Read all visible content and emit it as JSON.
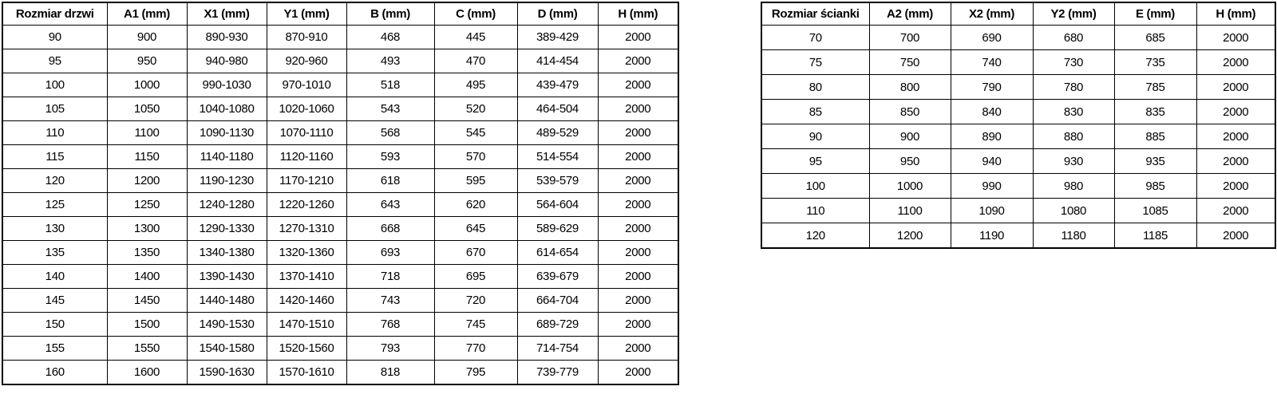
{
  "colors": {
    "background": "#ffffff",
    "border": "#000000",
    "text": "#000000"
  },
  "tables": [
    {
      "title": "Rozmiar drzwi",
      "headers": [
        "Rozmiar drzwi",
        "A1 (mm)",
        "X1 (mm)",
        "Y1 (mm)",
        "B (mm)",
        "C (mm)",
        "D (mm)",
        "H (mm)"
      ],
      "rows": [
        [
          "90",
          "900",
          "890-930",
          "870-910",
          "468",
          "445",
          "389-429",
          "2000"
        ],
        [
          "95",
          "950",
          "940-980",
          "920-960",
          "493",
          "470",
          "414-454",
          "2000"
        ],
        [
          "100",
          "1000",
          "990-1030",
          "970-1010",
          "518",
          "495",
          "439-479",
          "2000"
        ],
        [
          "105",
          "1050",
          "1040-1080",
          "1020-1060",
          "543",
          "520",
          "464-504",
          "2000"
        ],
        [
          "110",
          "1100",
          "1090-1130",
          "1070-1110",
          "568",
          "545",
          "489-529",
          "2000"
        ],
        [
          "115",
          "1150",
          "1140-1180",
          "1120-1160",
          "593",
          "570",
          "514-554",
          "2000"
        ],
        [
          "120",
          "1200",
          "1190-1230",
          "1170-1210",
          "618",
          "595",
          "539-579",
          "2000"
        ],
        [
          "125",
          "1250",
          "1240-1280",
          "1220-1260",
          "643",
          "620",
          "564-604",
          "2000"
        ],
        [
          "130",
          "1300",
          "1290-1330",
          "1270-1310",
          "668",
          "645",
          "589-629",
          "2000"
        ],
        [
          "135",
          "1350",
          "1340-1380",
          "1320-1360",
          "693",
          "670",
          "614-654",
          "2000"
        ],
        [
          "140",
          "1400",
          "1390-1430",
          "1370-1410",
          "718",
          "695",
          "639-679",
          "2000"
        ],
        [
          "145",
          "1450",
          "1440-1480",
          "1420-1460",
          "743",
          "720",
          "664-704",
          "2000"
        ],
        [
          "150",
          "1500",
          "1490-1530",
          "1470-1510",
          "768",
          "745",
          "689-729",
          "2000"
        ],
        [
          "155",
          "1550",
          "1540-1580",
          "1520-1560",
          "793",
          "770",
          "714-754",
          "2000"
        ],
        [
          "160",
          "1600",
          "1590-1630",
          "1570-1610",
          "818",
          "795",
          "739-779",
          "2000"
        ]
      ]
    },
    {
      "title": "Rozmiar ścianki",
      "headers": [
        "Rozmiar ścianki",
        "A2 (mm)",
        "X2 (mm)",
        "Y2 (mm)",
        "E (mm)",
        "H (mm)"
      ],
      "rows": [
        [
          "70",
          "700",
          "690",
          "680",
          "685",
          "2000"
        ],
        [
          "75",
          "750",
          "740",
          "730",
          "735",
          "2000"
        ],
        [
          "80",
          "800",
          "790",
          "780",
          "785",
          "2000"
        ],
        [
          "85",
          "850",
          "840",
          "830",
          "835",
          "2000"
        ],
        [
          "90",
          "900",
          "890",
          "880",
          "885",
          "2000"
        ],
        [
          "95",
          "950",
          "940",
          "930",
          "935",
          "2000"
        ],
        [
          "100",
          "1000",
          "990",
          "980",
          "985",
          "2000"
        ],
        [
          "110",
          "1100",
          "1090",
          "1080",
          "1085",
          "2000"
        ],
        [
          "120",
          "1200",
          "1190",
          "1180",
          "1185",
          "2000"
        ]
      ]
    }
  ]
}
